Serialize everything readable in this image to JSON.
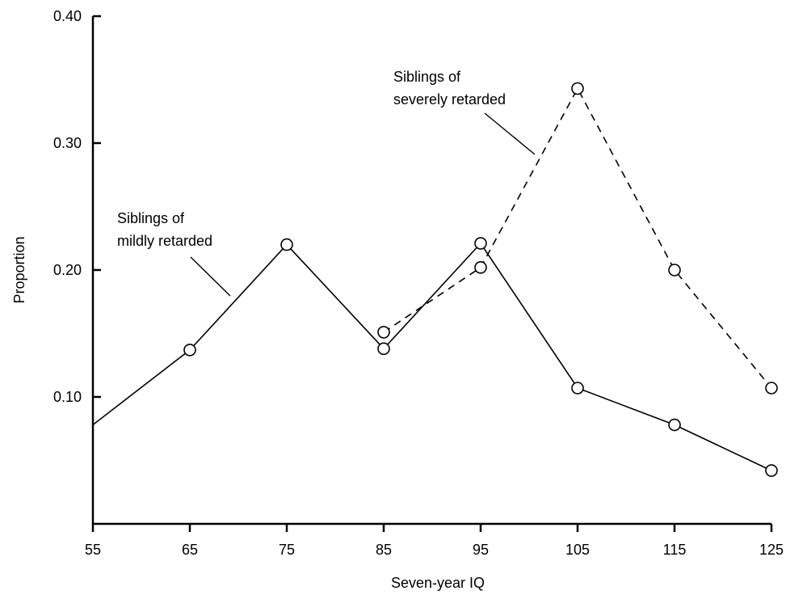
{
  "chart_data": {
    "type": "line",
    "xlabel": "Seven-year IQ",
    "ylabel": "Proportion",
    "xlim": [
      55,
      125
    ],
    "ylim": [
      0.0,
      0.4
    ],
    "x_ticks": [
      55,
      65,
      75,
      85,
      95,
      105,
      115,
      125
    ],
    "x_tick_labels": [
      "55",
      "65",
      "75",
      "85",
      "95",
      "105",
      "115",
      "125"
    ],
    "y_ticks": [
      0.1,
      0.2,
      0.3,
      0.4
    ],
    "y_tick_labels": [
      "0.10",
      "0.20",
      "0.30",
      "0.40"
    ],
    "grid": false,
    "series": [
      {
        "name": "Siblings of mildly retarded",
        "line_style": "solid",
        "marker": "open-circle",
        "x": [
          55,
          65,
          75,
          85,
          95,
          105,
          115,
          125
        ],
        "y": [
          0.078,
          0.137,
          0.22,
          0.138,
          0.221,
          0.107,
          0.078,
          0.042
        ],
        "marker_shown": [
          false,
          true,
          true,
          true,
          true,
          true,
          true,
          true
        ]
      },
      {
        "name": "Siblings of severely retarded",
        "line_style": "dashed",
        "marker": "open-circle",
        "x": [
          85,
          95,
          105,
          115,
          125
        ],
        "y": [
          0.151,
          0.202,
          0.343,
          0.2,
          0.107
        ],
        "marker_shown": [
          true,
          true,
          true,
          true,
          true
        ]
      }
    ],
    "annotations": [
      {
        "series": 0,
        "lines": [
          "Siblings of",
          "mildly retarded"
        ]
      },
      {
        "series": 1,
        "lines": [
          "Siblings of",
          "severely retarded"
        ]
      }
    ]
  }
}
